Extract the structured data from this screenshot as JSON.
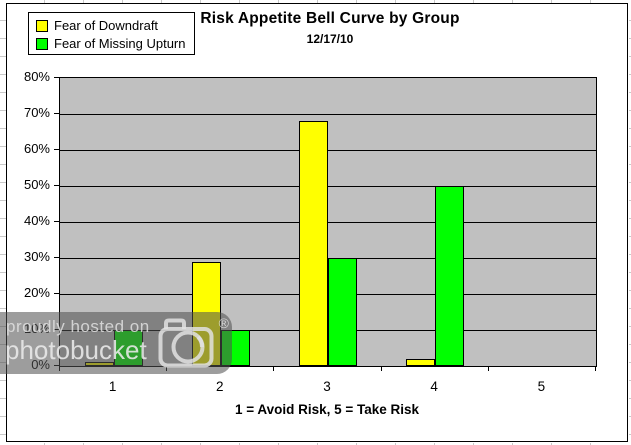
{
  "chart_data": {
    "type": "bar",
    "title": "Risk Appetite Bell Curve by Group",
    "subtitle": "12/17/10",
    "categories": [
      "1",
      "2",
      "3",
      "4",
      "5"
    ],
    "series": [
      {
        "name": "Fear of Downdraft",
        "color": "#FFFF00",
        "values": [
          1,
          29,
          68,
          2,
          0
        ]
      },
      {
        "name": "Fear of Missing Upturn",
        "color": "#00FF00",
        "values": [
          10,
          10,
          30,
          50,
          0
        ]
      }
    ],
    "xlabel": "1 = Avoid Risk, 5 = Take Risk",
    "ylabel": "",
    "ylim": [
      0,
      80
    ],
    "ytick_step": 10,
    "ytick_suffix": "%",
    "grid": true,
    "legend_position": "top-left",
    "plot_bg": "#C0C0C0",
    "gridline_color": "#000000"
  },
  "watermark": {
    "line1": "proudly hosted on",
    "line2": "photobucket",
    "registered_mark": "®",
    "icon": "camera-icon"
  }
}
